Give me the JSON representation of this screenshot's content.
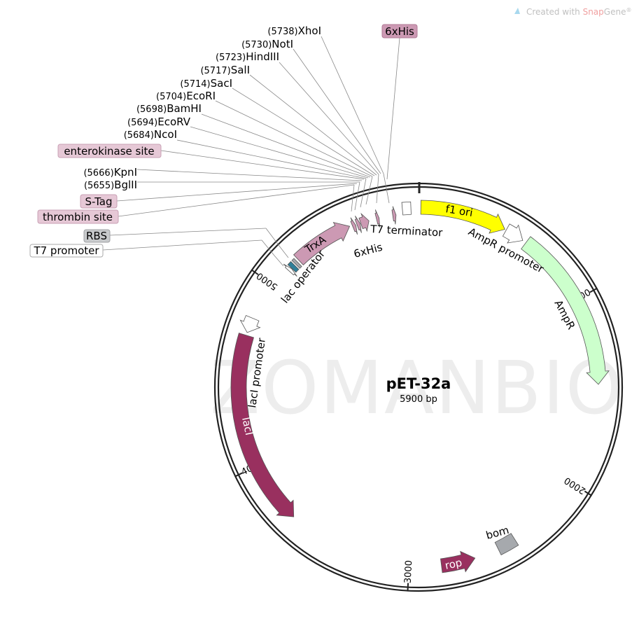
{
  "credit": {
    "prefix": "Created with ",
    "brand_a": "Snap",
    "brand_b": "Gene",
    "mark": "®"
  },
  "plasmid": {
    "name": "pET-32a",
    "length": "5900 bp",
    "total_bp": 5900
  },
  "watermark": "ZOMANBIO",
  "ticks": [
    "1000",
    "2000",
    "3000",
    "4000",
    "5000"
  ],
  "sites": [
    {
      "pos": "(5738)",
      "name": "XhoI"
    },
    {
      "pos": "(5730)",
      "name": "NotI"
    },
    {
      "pos": "(5723)",
      "name": "HindIII"
    },
    {
      "pos": "(5717)",
      "name": "SalI"
    },
    {
      "pos": "(5714)",
      "name": "SacI"
    },
    {
      "pos": "(5704)",
      "name": "EcoRI"
    },
    {
      "pos": "(5698)",
      "name": "BamHI"
    },
    {
      "pos": "(5694)",
      "name": "EcoRV"
    },
    {
      "pos": "(5684)",
      "name": "NcoI"
    },
    {
      "pos": "(5666)",
      "name": "KpnI"
    },
    {
      "pos": "(5655)",
      "name": "BglII"
    }
  ],
  "boxed_labels": {
    "his_top": "6xHis",
    "enterokinase": "enterokinase site",
    "stag": "S-Tag",
    "thrombin": "thrombin site",
    "rbs": "RBS",
    "t7_promoter": "T7 promoter"
  },
  "colors": {
    "pink": "#cc99b3",
    "maroon": "#99305f",
    "yellow": "#ffff00",
    "green": "#ccffcc",
    "grey": "#a6a9ad",
    "teal": "#2e7f99",
    "white": "#ffffff"
  },
  "features": [
    {
      "name": "f1 ori",
      "start": 12,
      "end": 470,
      "strand": 1,
      "color": "#ffff00"
    },
    {
      "name": "AmpR promoter",
      "start": 478,
      "end": 580,
      "strand": 1,
      "color": "#ffffff"
    },
    {
      "name": "AmpR",
      "start": 600,
      "end": 1460,
      "strand": 1,
      "color": "#ccffcc"
    },
    {
      "name": "bom",
      "start": 2420,
      "end": 2520,
      "strand": 0,
      "color": "#a6a9ad"
    },
    {
      "name": "rop",
      "start": 2650,
      "end": 2830,
      "strand": -1,
      "color": "#99305f"
    },
    {
      "name": "lacI",
      "start": 3670,
      "end": 4700,
      "strand": -1,
      "color": "#99305f"
    },
    {
      "name": "lacI promoter",
      "start": 4715,
      "end": 4795,
      "strand": -1,
      "color": "#ffffff"
    },
    {
      "name": "T7 promoter",
      "start": 5112,
      "end": 5130,
      "strand": 1,
      "color": "#ffffff"
    },
    {
      "name": "lac operator",
      "start": 5132,
      "end": 5155,
      "strand": 0,
      "color": "#2e7f99"
    },
    {
      "name": "RBS",
      "start": 5163,
      "end": 5178,
      "strand": 0,
      "color": "#a6a9ad"
    },
    {
      "name": "TrxA",
      "start": 5190,
      "end": 5520,
      "strand": 1,
      "color": "#cc99b3"
    },
    {
      "name": "6xHis",
      "start": 5535,
      "end": 5553,
      "strand": 1,
      "color": "#cc99b3"
    },
    {
      "name": "thrombin site",
      "start": 5560,
      "end": 5578,
      "strand": 1,
      "color": "#cc99b3"
    },
    {
      "name": "S-Tag",
      "start": 5582,
      "end": 5628,
      "strand": 1,
      "color": "#cc99b3"
    },
    {
      "name": "enterokinase site",
      "start": 5670,
      "end": 5685,
      "strand": 1,
      "color": "#cc99b3"
    },
    {
      "name": "6xHis",
      "start": 5760,
      "end": 5778,
      "strand": 1,
      "color": "#cc99b3"
    },
    {
      "name": "T7 terminator",
      "start": 5815,
      "end": 5860,
      "strand": 0,
      "color": "#ffffff"
    }
  ],
  "feature_labels": {
    "f1ori": "f1 ori",
    "ampr_promoter": "AmpR promoter",
    "ampr": "AmpR",
    "bom": "bom",
    "rop": "rop",
    "laci": "lacI",
    "laci_promoter": "lacI promoter",
    "lac_operator": "lac operator",
    "trxa": "TrxA",
    "his_inner": "6xHis",
    "t7_terminator": "T7 terminator"
  }
}
